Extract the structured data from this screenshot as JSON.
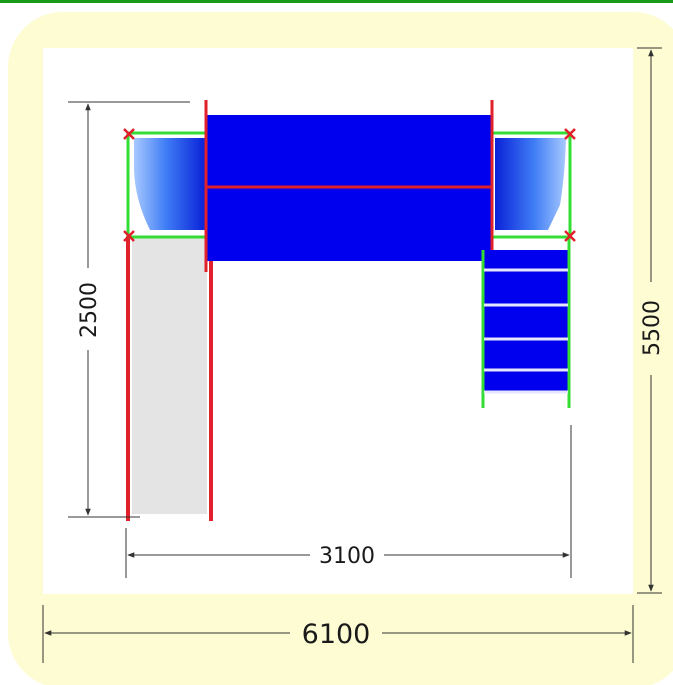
{
  "colors": {
    "top_border": "#1a9a1a",
    "zone_fill": "#fdfcd2",
    "inner_fill": "#ffffff",
    "platform": "#0000ee",
    "beam_red": "#e0202a",
    "frame_green": "#33dd33",
    "slide_gray": "#e4e4e4",
    "dim_line": "#333333"
  },
  "dimensions": {
    "tower_height": "2500",
    "inner_width": "3100",
    "total_depth": "5500",
    "total_width": "6100"
  },
  "components": {
    "left_roof_icon": "tube-roof-icon",
    "right_roof_icon": "tube-roof-icon",
    "ladder_rungs": 6
  }
}
